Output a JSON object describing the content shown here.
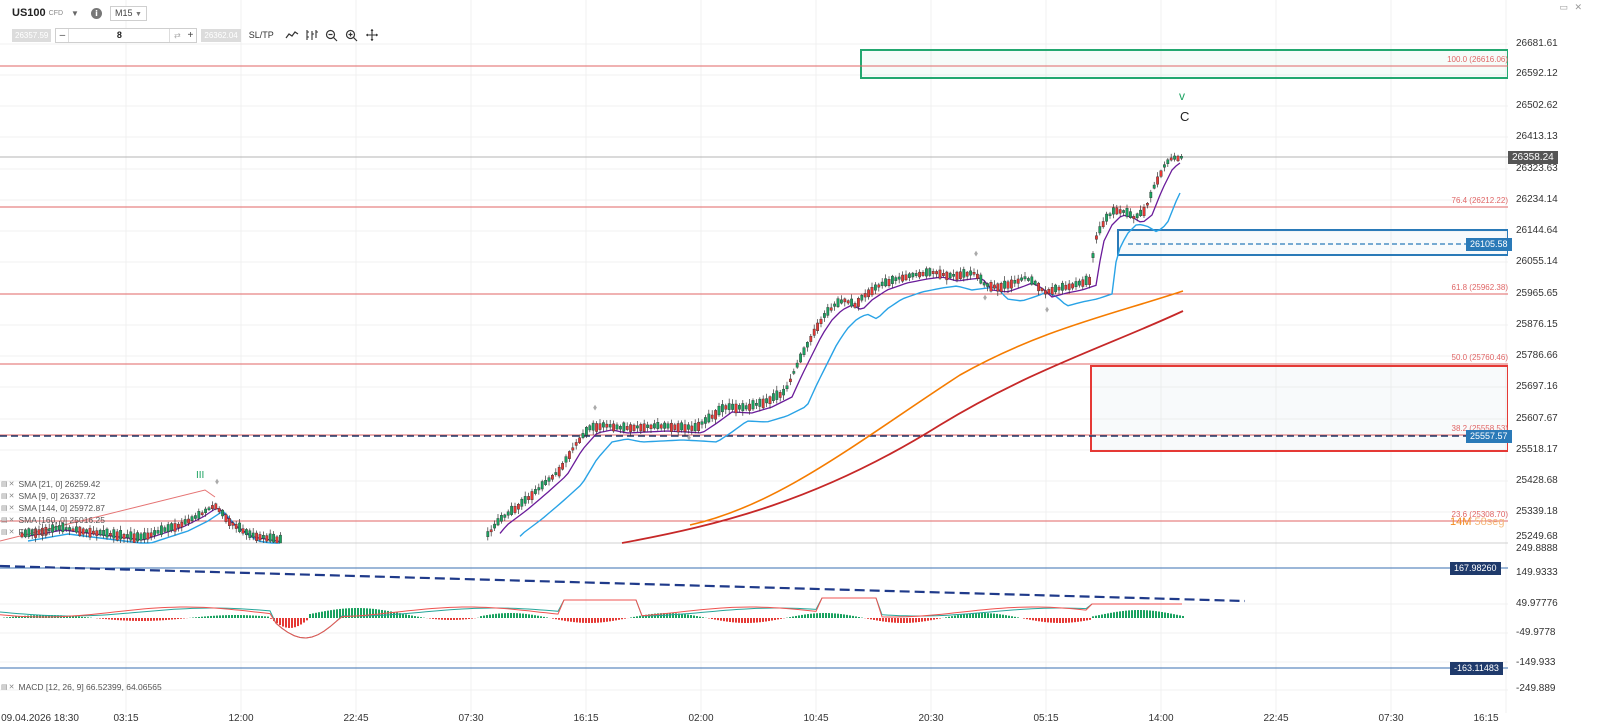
{
  "toolbar": {
    "symbol": "US100",
    "symbol_type": "CFD",
    "timeframe": "M15",
    "bid": "26357.59",
    "volume": "8",
    "ask": "26362.04",
    "sltp": "SL/TP",
    "icons": [
      "line-tool-icon",
      "indicators-icon",
      "zoom-out-icon",
      "zoom-in-icon",
      "crosshair-icon"
    ]
  },
  "window_controls": "▭ ✕",
  "price_axis": {
    "labels": [
      "26681.61",
      "26592.12",
      "26502.62",
      "26413.13",
      "26323.63",
      "26234.14",
      "26144.64",
      "26055.14",
      "25965.65",
      "25876.15",
      "25786.66",
      "25697.16",
      "25607.67",
      "25518.17",
      "25428.68",
      "25339.18",
      "25249.68"
    ],
    "current_price": "26358.24",
    "order_line": "26105.58",
    "hline": "25557.57"
  },
  "macd_axis": {
    "labels": [
      "249.8888",
      "149.9333",
      "49.97776",
      "-49.9778",
      "-149.933",
      "-249.889"
    ],
    "upper_line": "167.98260",
    "lower_line": "-163.11483"
  },
  "time_axis": [
    "09.04.2026 18:30",
    "03:15",
    "12:00",
    "22:45",
    "07:30",
    "16:15",
    "02:00",
    "10:45",
    "20:30",
    "05:15",
    "14:00",
    "22:45",
    "07:30",
    "16:15"
  ],
  "fibonacci": [
    {
      "label": "100.0 (26616.06)"
    },
    {
      "label": "76.4 (26212.22)"
    },
    {
      "label": "61.8 (25962.38)"
    },
    {
      "label": "50.0 (25760.46)"
    },
    {
      "label": "38.2 (25558.53)"
    },
    {
      "label": "23.6 (25308.70)"
    }
  ],
  "legend": [
    {
      "text": "SMA [21, 0] 26259.42"
    },
    {
      "text": "SMA [9, 0] 26337.72"
    },
    {
      "text": "SMA [144, 0] 25972.87"
    },
    {
      "text": "SMA [160, 0] 25016.25"
    },
    {
      "text": "F... 0.00"
    }
  ],
  "macd_legend": "MACD [12, 26, 9] 66.52399, 64.06565",
  "elliott_labels": {
    "v": "v",
    "c": "C",
    "iii": "III"
  },
  "timer": {
    "minutes": "14M",
    "seconds": "58seg"
  },
  "colors": {
    "bull": "#1aa260",
    "bear": "#e53935",
    "fib": "#e06666",
    "green_zone": "#23a870",
    "blue_zone": "#2a7ab8",
    "red_zone": "#e53935",
    "sma9": "#6a1b9a",
    "sma21": "#29a3e6",
    "sma144": "#f57c00",
    "sma160": "#c62828",
    "price_badge": "#555555",
    "order_badge": "#2a7ab8",
    "macd_badge": "#1f3a6b"
  }
}
